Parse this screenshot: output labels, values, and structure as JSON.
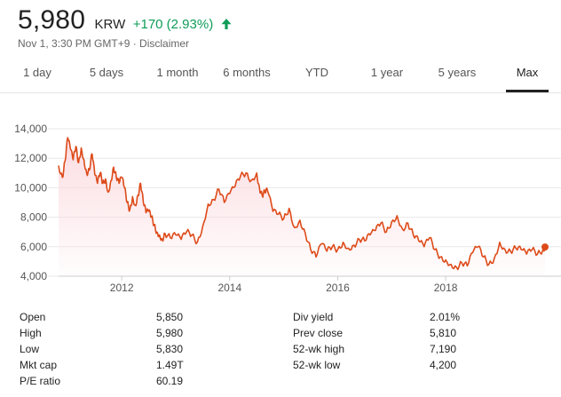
{
  "quote": {
    "price": "5,980",
    "currency": "KRW",
    "change": "+170 (2.93%)",
    "change_color": "#0f9d58",
    "arrow_icon": "arrow-up-icon",
    "timestamp": "Nov 1, 3:30 PM GMT+9 · Disclaimer"
  },
  "tabs": [
    {
      "label": "1 day"
    },
    {
      "label": "5 days"
    },
    {
      "label": "1 month"
    },
    {
      "label": "6 months"
    },
    {
      "label": "YTD"
    },
    {
      "label": "1 year"
    },
    {
      "label": "5 years"
    },
    {
      "label": "Max",
      "active": true
    }
  ],
  "stats_left": [
    {
      "label": "Open",
      "value": "5,850"
    },
    {
      "label": "High",
      "value": "5,980"
    },
    {
      "label": "Low",
      "value": "5,830"
    },
    {
      "label": "Mkt cap",
      "value": "1.49T"
    },
    {
      "label": "P/E ratio",
      "value": "60.19"
    }
  ],
  "stats_right": [
    {
      "label": "Div yield",
      "value": "2.01%"
    },
    {
      "label": "Prev close",
      "value": "5,810"
    },
    {
      "label": "52-wk high",
      "value": "7,190"
    },
    {
      "label": "52-wk low",
      "value": "4,200"
    }
  ],
  "chart_data": {
    "type": "area",
    "line_color": "#dd4b1a",
    "fill_color": "#fbd9de",
    "grid": true,
    "ylim": [
      4000,
      14000
    ],
    "y_ticks": [
      "14,000",
      "12,000",
      "10,000",
      "8,000",
      "6,000",
      "4,000"
    ],
    "y_tick_values": [
      14000,
      12000,
      10000,
      8000,
      6000,
      4000
    ],
    "x_ticks": [
      "2012",
      "2014",
      "2016",
      "2018"
    ],
    "x_tick_values": [
      2012,
      2014,
      2016,
      2018
    ],
    "xlim": [
      2010.83,
      2019.84
    ],
    "x": [
      2010.83,
      2010.9,
      2010.95,
      2011.0,
      2011.05,
      2011.1,
      2011.15,
      2011.2,
      2011.25,
      2011.3,
      2011.35,
      2011.4,
      2011.45,
      2011.5,
      2011.55,
      2011.6,
      2011.65,
      2011.7,
      2011.75,
      2011.8,
      2011.85,
      2011.9,
      2011.95,
      2012.0,
      2012.05,
      2012.1,
      2012.15,
      2012.2,
      2012.25,
      2012.3,
      2012.35,
      2012.4,
      2012.45,
      2012.5,
      2012.55,
      2012.6,
      2012.65,
      2012.7,
      2012.75,
      2012.8,
      2012.9,
      2013.0,
      2013.1,
      2013.2,
      2013.3,
      2013.4,
      2013.5,
      2013.6,
      2013.7,
      2013.8,
      2013.9,
      2014.0,
      2014.1,
      2014.2,
      2014.3,
      2014.4,
      2014.5,
      2014.55,
      2014.6,
      2014.65,
      2014.7,
      2014.8,
      2014.9,
      2015.0,
      2015.1,
      2015.2,
      2015.3,
      2015.4,
      2015.5,
      2015.6,
      2015.7,
      2015.8,
      2015.9,
      2016.0,
      2016.1,
      2016.2,
      2016.3,
      2016.4,
      2016.5,
      2016.6,
      2016.7,
      2016.8,
      2016.9,
      2017.0,
      2017.1,
      2017.2,
      2017.3,
      2017.4,
      2017.5,
      2017.6,
      2017.7,
      2017.8,
      2017.9,
      2018.0,
      2018.1,
      2018.2,
      2018.3,
      2018.4,
      2018.5,
      2018.6,
      2018.7,
      2018.8,
      2018.9,
      2019.0,
      2019.1,
      2019.2,
      2019.3,
      2019.4,
      2019.5,
      2019.6,
      2019.7,
      2019.8,
      2019.84
    ],
    "values": [
      11500,
      10700,
      11800,
      13400,
      12600,
      11900,
      12800,
      11700,
      12700,
      11900,
      11000,
      11200,
      12300,
      10900,
      10300,
      11000,
      10300,
      10600,
      9700,
      10500,
      11400,
      10700,
      10300,
      10700,
      10000,
      9000,
      8500,
      9400,
      8800,
      9500,
      10300,
      9000,
      8300,
      8400,
      8000,
      7500,
      7000,
      6800,
      6500,
      6900,
      6600,
      6800,
      6500,
      7000,
      6800,
      6300,
      7400,
      8900,
      9200,
      9900,
      9000,
      9600,
      10100,
      10800,
      11000,
      10500,
      11000,
      10000,
      9500,
      9700,
      9800,
      8400,
      8200,
      7900,
      8600,
      7300,
      7800,
      6900,
      5800,
      5300,
      6200,
      5700,
      6000,
      5800,
      6300,
      5900,
      6100,
      6500,
      6400,
      6800,
      7100,
      7600,
      7000,
      7700,
      8100,
      7200,
      7600,
      6800,
      6400,
      6000,
      6600,
      5800,
      5300,
      5100,
      4800,
      4600,
      4900,
      4700,
      5600,
      6000,
      5300,
      4800,
      5200,
      6300,
      5800,
      5700,
      5900,
      5800,
      5500,
      5800,
      5500,
      5800,
      5980
    ]
  }
}
